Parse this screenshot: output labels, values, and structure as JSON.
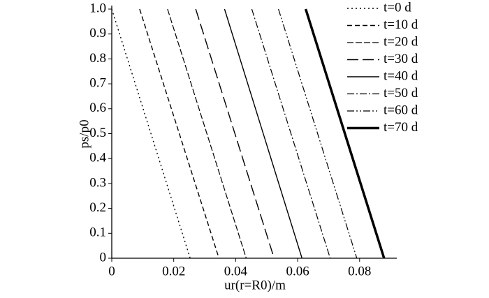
{
  "chart_data": {
    "type": "line",
    "x_label": "ur(r=R0)/m",
    "y_label": "ps/p0",
    "xlim": [
      0,
      0.092
    ],
    "ylim": [
      0,
      1
    ],
    "xticks": [
      0,
      0.02,
      0.04,
      0.06,
      0.08
    ],
    "yticks": [
      0,
      0.1,
      0.2,
      0.3,
      0.4,
      0.5,
      0.6,
      0.7,
      0.8,
      0.9,
      {
        "value": 1,
        "label": "1.0"
      }
    ],
    "legend": "upper right",
    "grid": false,
    "series": [
      {
        "name": "t=0 d",
        "color": "#000000",
        "x": [
          0,
          0.0253
        ],
        "values": [
          1,
          0
        ]
      },
      {
        "name": "t=10 d",
        "color": "#000000",
        "x": [
          0.009,
          0.0346
        ],
        "values": [
          1,
          0
        ]
      },
      {
        "name": "t=20 d",
        "color": "#000000",
        "x": [
          0.018,
          0.0434
        ],
        "values": [
          1,
          0
        ]
      },
      {
        "name": "t=30 d",
        "color": "#000000",
        "x": [
          0.0271,
          0.0524
        ],
        "values": [
          1,
          0
        ]
      },
      {
        "name": "t=40 d",
        "color": "#000000",
        "x": [
          0.0364,
          0.0614
        ],
        "values": [
          1,
          0
        ]
      },
      {
        "name": "t=50 d",
        "color": "#000000",
        "x": [
          0.0452,
          0.0705
        ],
        "values": [
          1,
          0
        ]
      },
      {
        "name": "t=60 d",
        "color": "#000000",
        "x": [
          0.0538,
          0.0791
        ],
        "values": [
          1,
          0
        ]
      },
      {
        "name": "t=70 d",
        "color": "#000000",
        "x": [
          0.0626,
          0.0879
        ],
        "values": [
          1,
          0
        ]
      }
    ]
  }
}
